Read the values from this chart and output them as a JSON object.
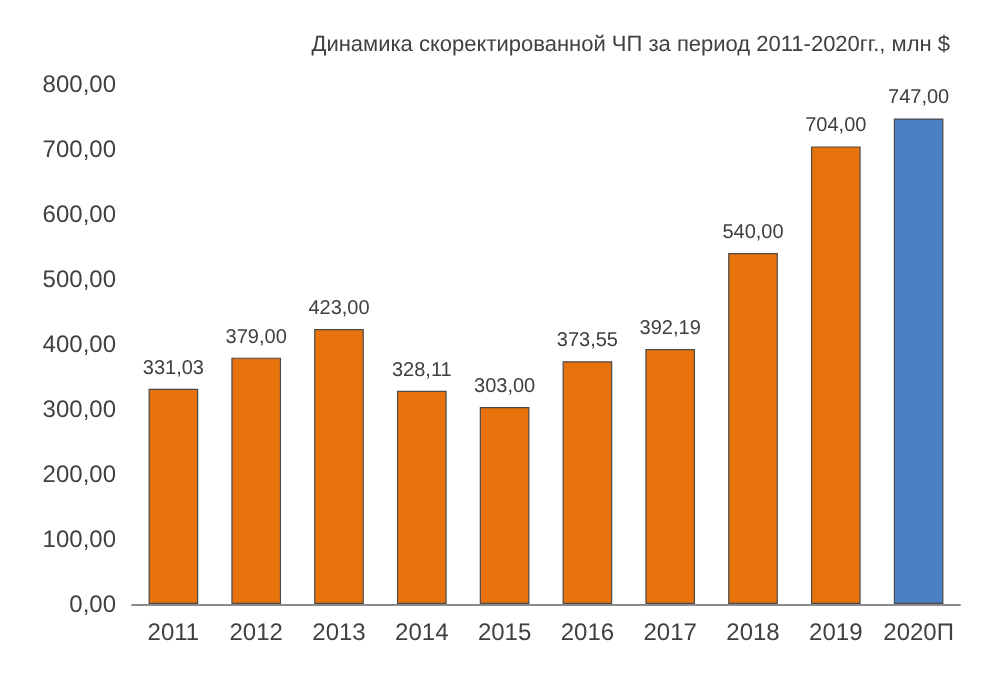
{
  "chart_data": {
    "type": "bar",
    "title": "Динамика скоректированной ЧП за период 2011-2020гг., млн $",
    "categories": [
      "2011",
      "2012",
      "2013",
      "2014",
      "2015",
      "2016",
      "2017",
      "2018",
      "2019",
      "2020П"
    ],
    "values": [
      331.03,
      379,
      423,
      328.11,
      303,
      373.55,
      392.19,
      540,
      704,
      747
    ],
    "colors": [
      "#e8720c",
      "#e8720c",
      "#e8720c",
      "#e8720c",
      "#e8720c",
      "#e8720c",
      "#e8720c",
      "#e8720c",
      "#e8720c",
      "#4a7fc4"
    ],
    "value_labels": [
      "331,03",
      "379,00",
      "423,00",
      "328,11",
      "303,00",
      "373,55",
      "392,19",
      "540,00",
      "704,00",
      "747,00"
    ],
    "ylim": [
      0,
      800
    ],
    "yticks": [
      {
        "value": 0,
        "label": "0,00"
      },
      {
        "value": 100,
        "label": "100,00"
      },
      {
        "value": 200,
        "label": "200,00"
      },
      {
        "value": 300,
        "label": "300,00"
      },
      {
        "value": 400,
        "label": "400,00"
      },
      {
        "value": 500,
        "label": "500,00"
      },
      {
        "value": 600,
        "label": "600,00"
      },
      {
        "value": 700,
        "label": "700,00"
      },
      {
        "value": 800,
        "label": "800,00"
      }
    ],
    "grid": false
  }
}
